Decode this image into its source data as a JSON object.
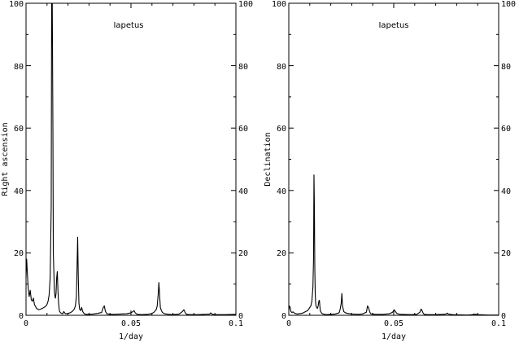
{
  "chart_data": [
    {
      "type": "line",
      "title": "Iapetus",
      "xlabel": "1/day",
      "ylabel": "Right ascension",
      "xlim": [
        0,
        0.1
      ],
      "ylim": [
        0,
        100
      ],
      "xticks": [
        "0",
        "0.05",
        "0.1"
      ],
      "yticks": [
        "0",
        "20",
        "40",
        "60",
        "80",
        "100"
      ],
      "grid": false,
      "series": [
        {
          "x": [
            0,
            0.0003,
            0.0006,
            0.001,
            0.0015,
            0.002,
            0.0025,
            0.003,
            0.0035,
            0.004,
            0.005,
            0.006,
            0.007,
            0.008,
            0.009,
            0.0095,
            0.01,
            0.0105,
            0.011,
            0.0115,
            0.012,
            0.0122,
            0.0125,
            0.0128,
            0.013,
            0.0135,
            0.0138,
            0.014,
            0.0143,
            0.0146,
            0.0149,
            0.0152,
            0.0155,
            0.0158,
            0.016,
            0.0165,
            0.017,
            0.0175,
            0.018,
            0.0185,
            0.019,
            0.02,
            0.021,
            0.022,
            0.023,
            0.0235,
            0.024,
            0.0243,
            0.0246,
            0.0249,
            0.0252,
            0.0255,
            0.026,
            0.0265,
            0.027,
            0.0275,
            0.028,
            0.029,
            0.03,
            0.032,
            0.034,
            0.036,
            0.0368,
            0.0373,
            0.0378,
            0.0385,
            0.04,
            0.042,
            0.045,
            0.048,
            0.05,
            0.051,
            0.0515,
            0.052,
            0.053,
            0.055,
            0.058,
            0.06,
            0.061,
            0.062,
            0.0625,
            0.063,
            0.0633,
            0.0636,
            0.064,
            0.0645,
            0.065,
            0.066,
            0.068,
            0.07,
            0.073,
            0.0745,
            0.0752,
            0.0758,
            0.0765,
            0.078,
            0.082,
            0.085,
            0.0875,
            0.088,
            0.0885,
            0.09,
            0.095,
            0.1
          ],
          "y": [
            12,
            18,
            14,
            9,
            6,
            8,
            5,
            4.5,
            5.5,
            3.5,
            2.2,
            1.8,
            2,
            2.3,
            2.7,
            3,
            3.5,
            4.5,
            6.5,
            12,
            35,
            100,
            100,
            60,
            20,
            8,
            6,
            5.5,
            7,
            12,
            14,
            8,
            4,
            2,
            1.2,
            0.8,
            0.6,
            0.5,
            1.2,
            0.7,
            0.5,
            0.6,
            0.8,
            1.2,
            2,
            3,
            6,
            15,
            25,
            12,
            4,
            2,
            1.5,
            2.5,
            1.2,
            0.7,
            0.4,
            0.3,
            0.3,
            0.4,
            0.6,
            0.9,
            2.5,
            3,
            1.3,
            0.5,
            0.3,
            0.3,
            0.4,
            0.5,
            0.8,
            1.2,
            1.5,
            0.8,
            0.3,
            0.2,
            0.3,
            0.6,
            1,
            1.8,
            3,
            7,
            10.5,
            7,
            2.5,
            1.5,
            0.9,
            0.5,
            0.3,
            0.2,
            0.4,
            1.2,
            1.8,
            0.9,
            0.3,
            0.2,
            0.2,
            0.3,
            0.4,
            0.8,
            0.4,
            0.2,
            0.2,
            0.3
          ]
        }
      ]
    },
    {
      "type": "line",
      "title": "Iapetus",
      "xlabel": "1/day",
      "ylabel": "Declination",
      "xlim": [
        0,
        0.1
      ],
      "ylim": [
        0,
        100
      ],
      "xticks": [
        "0",
        "0.05",
        "0.1"
      ],
      "yticks": [
        "0",
        "20",
        "40",
        "60",
        "80",
        "100"
      ],
      "grid": false,
      "series": [
        {
          "x": [
            0,
            0.0003,
            0.0007,
            0.001,
            0.0015,
            0.002,
            0.0025,
            0.003,
            0.004,
            0.005,
            0.006,
            0.007,
            0.008,
            0.009,
            0.0095,
            0.01,
            0.0105,
            0.011,
            0.0115,
            0.0118,
            0.012,
            0.0122,
            0.0124,
            0.0126,
            0.0128,
            0.013,
            0.0133,
            0.0136,
            0.014,
            0.0143,
            0.0146,
            0.0148,
            0.015,
            0.0155,
            0.016,
            0.017,
            0.018,
            0.02,
            0.022,
            0.024,
            0.0245,
            0.025,
            0.0253,
            0.0256,
            0.0262,
            0.027,
            0.028,
            0.03,
            0.033,
            0.035,
            0.037,
            0.0375,
            0.038,
            0.0385,
            0.039,
            0.041,
            0.045,
            0.048,
            0.0495,
            0.0502,
            0.0508,
            0.0515,
            0.053,
            0.058,
            0.061,
            0.0625,
            0.063,
            0.0633,
            0.064,
            0.0645,
            0.066,
            0.07,
            0.073,
            0.075,
            0.0755,
            0.076,
            0.078,
            0.085,
            0.088,
            0.088,
            0.09,
            0.095,
            0.1
          ],
          "y": [
            1.5,
            3,
            2.5,
            1.2,
            0.9,
            1.1,
            0.8,
            0.6,
            0.4,
            0.5,
            0.6,
            0.8,
            1.2,
            1.5,
            2,
            2.5,
            3,
            4.5,
            9,
            18,
            45,
            35,
            15,
            7,
            4,
            3,
            2.5,
            2.2,
            3,
            4.5,
            4.8,
            3,
            1.5,
            0.8,
            0.5,
            0.3,
            0.2,
            0.3,
            0.4,
            0.8,
            2,
            4,
            7,
            3,
            1.2,
            0.8,
            0.6,
            0.4,
            0.3,
            0.4,
            1,
            3,
            2.5,
            1.2,
            0.5,
            0.3,
            0.3,
            0.5,
            1,
            1.8,
            1.2,
            0.6,
            0.3,
            0.2,
            0.3,
            1,
            2,
            1.8,
            0.7,
            0.3,
            0.2,
            0.2,
            0.3,
            0.4,
            0.7,
            0.4,
            0.2,
            0.1,
            0.2,
            0.4,
            0.2,
            0.1,
            0.1
          ]
        }
      ]
    }
  ]
}
